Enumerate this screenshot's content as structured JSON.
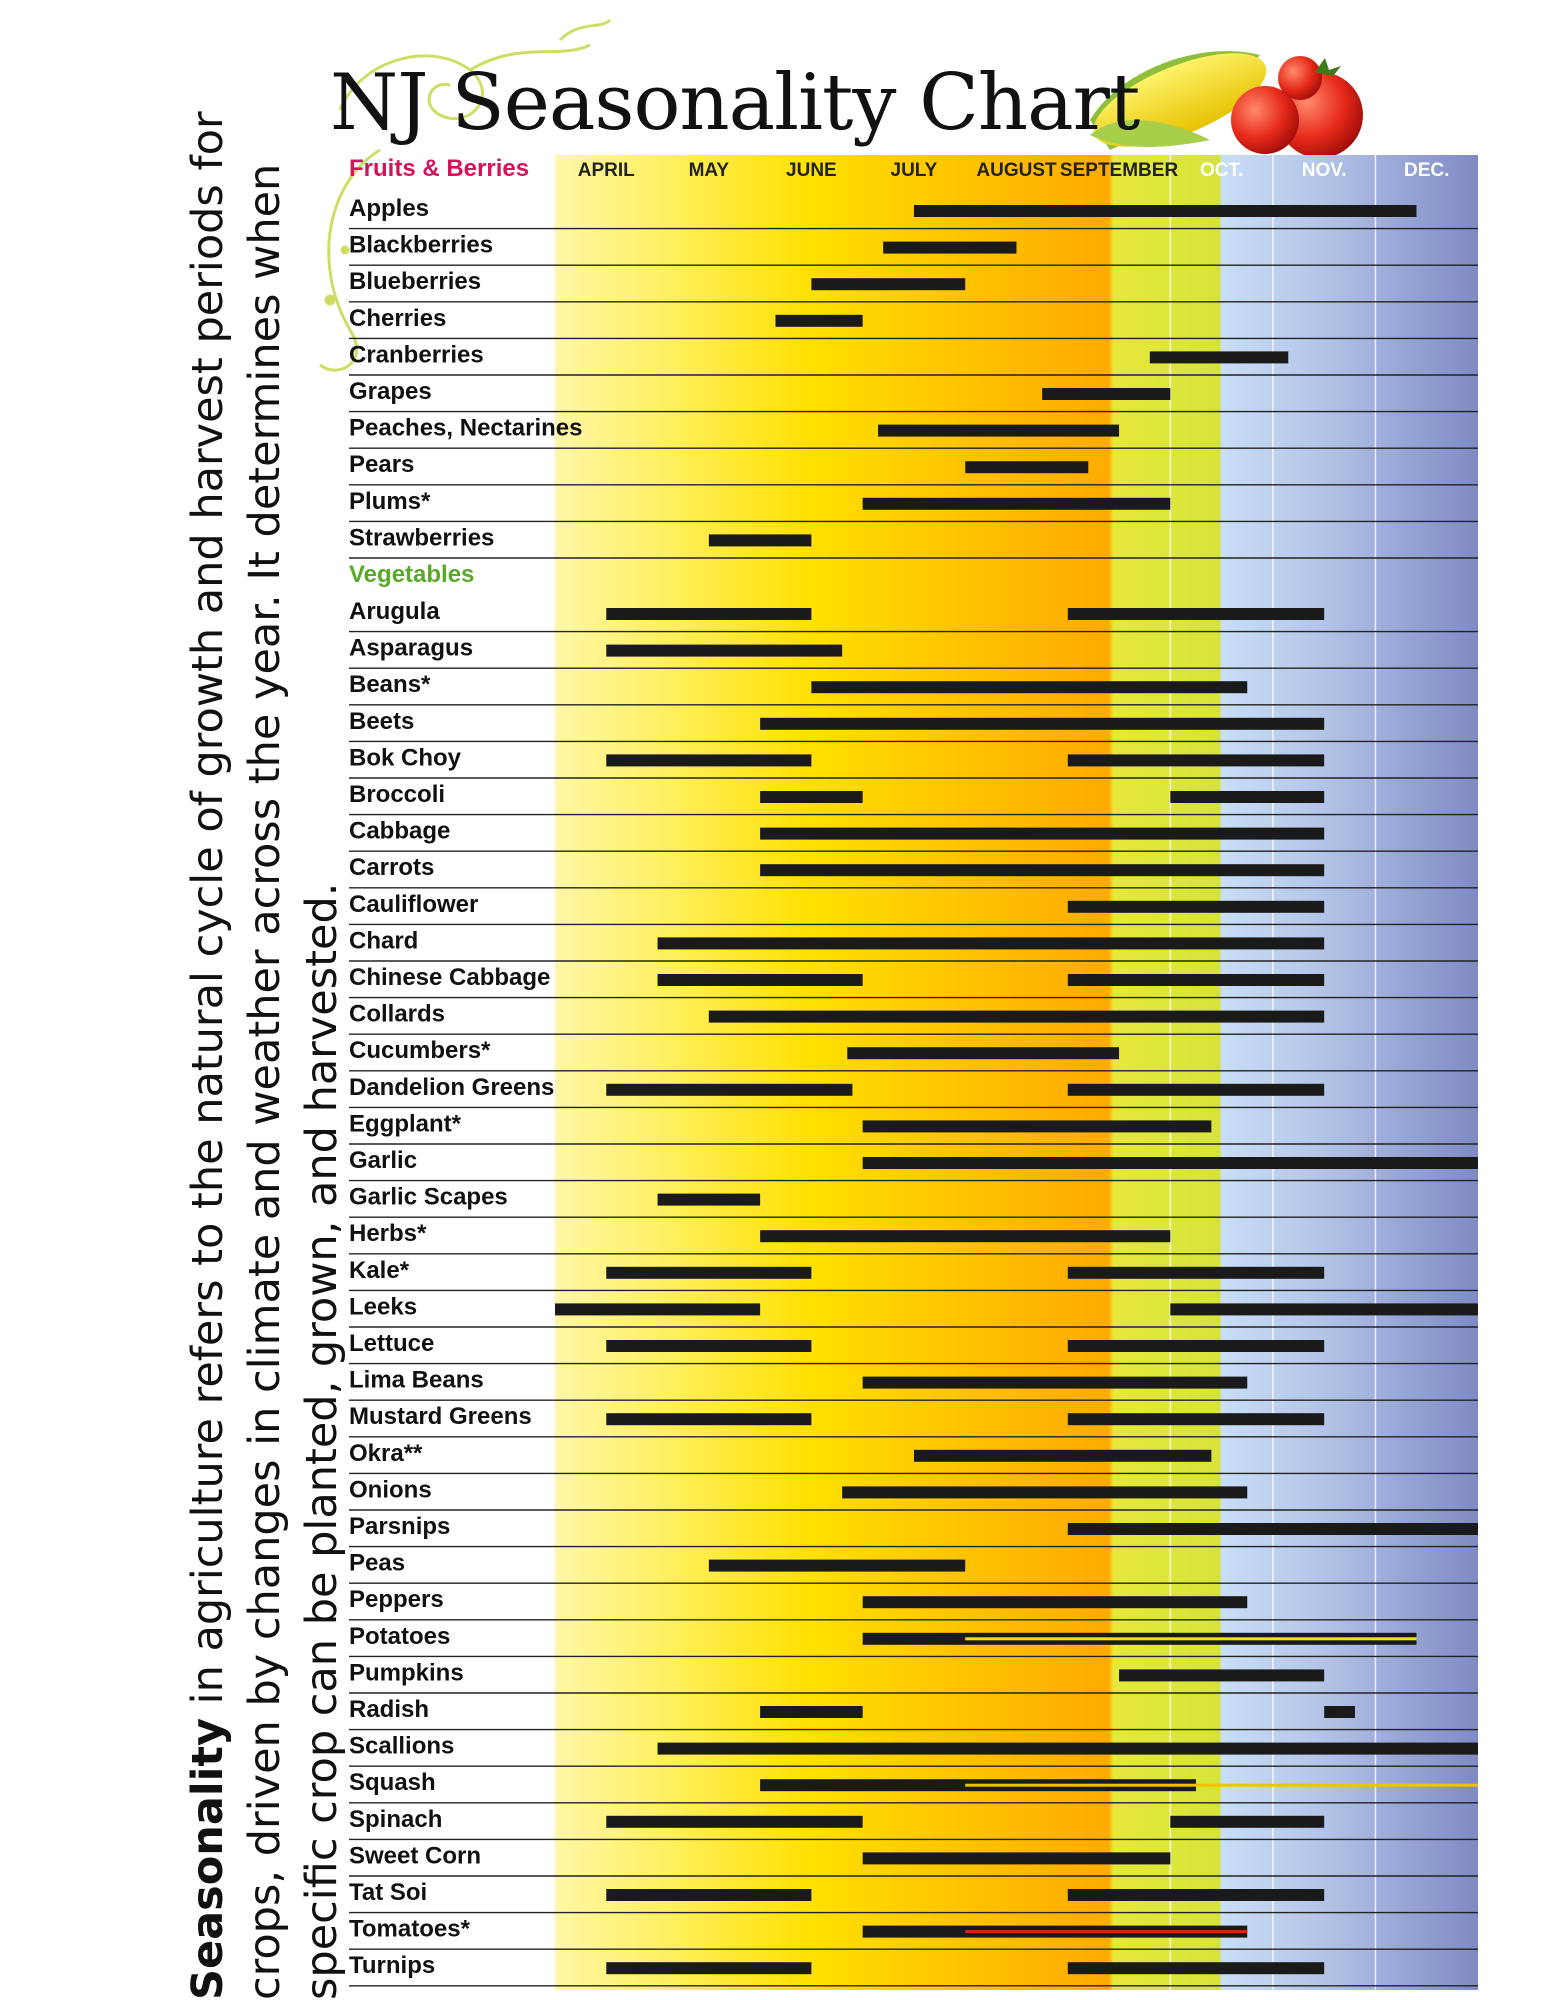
{
  "caption": {
    "bold": "Seasonality",
    "rest": " in agriculture refers to the natural cycle of growth and harvest periods for crops, driven by changes in climate and weather across the year. It determines when specific crop can be planted, grown, and harvested."
  },
  "colors": {
    "fruits_header": "#d4145a",
    "vegetables_header": "#5aaa2a",
    "bar": "#1a1a1a",
    "line": "#222222"
  },
  "icons": [
    "swirl-ornament-icon",
    "corn-icon",
    "tomato-icon"
  ],
  "chart_data": {
    "type": "timeline",
    "title": "NJ Seasonality Chart",
    "x_unit": "month",
    "x_range": [
      4,
      13
    ],
    "months": [
      "APRIL",
      "MAY",
      "JUNE",
      "JULY",
      "AUGUST",
      "SEPTEMBER",
      "OCT.",
      "NOV.",
      "DEC."
    ],
    "sections": [
      {
        "name": "Fruits & Berries",
        "items": [
          {
            "name": "Apples",
            "ranges": [
              [
                7.5,
                12.4
              ]
            ]
          },
          {
            "name": "Blackberries",
            "ranges": [
              [
                7.2,
                8.5
              ]
            ]
          },
          {
            "name": "Blueberries",
            "ranges": [
              [
                6.5,
                8.0
              ]
            ]
          },
          {
            "name": "Cherries",
            "ranges": [
              [
                6.15,
                7.0
              ]
            ]
          },
          {
            "name": "Cranberries",
            "ranges": [
              [
                9.8,
                11.15
              ]
            ]
          },
          {
            "name": "Grapes",
            "ranges": [
              [
                8.75,
                10.0
              ]
            ]
          },
          {
            "name": "Peaches, Nectarines",
            "ranges": [
              [
                7.15,
                9.5
              ]
            ]
          },
          {
            "name": "Pears",
            "ranges": [
              [
                8.0,
                9.2
              ]
            ]
          },
          {
            "name": "Plums*",
            "ranges": [
              [
                7.0,
                10.0
              ]
            ]
          },
          {
            "name": "Strawberries",
            "ranges": [
              [
                5.5,
                6.5
              ]
            ]
          }
        ]
      },
      {
        "name": "Vegetables",
        "items": [
          {
            "name": "Arugula",
            "ranges": [
              [
                4.5,
                6.5
              ],
              [
                9.0,
                11.5
              ]
            ]
          },
          {
            "name": "Asparagus",
            "ranges": [
              [
                4.5,
                6.8
              ]
            ]
          },
          {
            "name": "Beans*",
            "ranges": [
              [
                6.5,
                10.75
              ]
            ]
          },
          {
            "name": "Beets",
            "ranges": [
              [
                6.0,
                11.5
              ]
            ]
          },
          {
            "name": "Bok Choy",
            "ranges": [
              [
                4.5,
                6.5
              ],
              [
                9.0,
                11.5
              ]
            ]
          },
          {
            "name": "Broccoli",
            "ranges": [
              [
                6.0,
                7.0
              ],
              [
                10.0,
                11.5
              ]
            ]
          },
          {
            "name": "Cabbage",
            "ranges": [
              [
                6.0,
                11.5
              ]
            ]
          },
          {
            "name": "Carrots",
            "ranges": [
              [
                6.0,
                11.5
              ]
            ]
          },
          {
            "name": "Cauliflower",
            "ranges": [
              [
                9.0,
                11.5
              ]
            ]
          },
          {
            "name": "Chard",
            "ranges": [
              [
                5.0,
                11.5
              ]
            ]
          },
          {
            "name": "Chinese Cabbage",
            "ranges": [
              [
                5.0,
                7.0
              ],
              [
                9.0,
                11.5
              ]
            ]
          },
          {
            "name": "Collards",
            "ranges": [
              [
                5.5,
                11.5
              ]
            ]
          },
          {
            "name": "Cucumbers*",
            "ranges": [
              [
                6.85,
                9.5
              ]
            ]
          },
          {
            "name": "Dandelion Greens",
            "ranges": [
              [
                4.5,
                6.9
              ],
              [
                9.0,
                11.5
              ]
            ]
          },
          {
            "name": "Eggplant*",
            "ranges": [
              [
                7.0,
                10.4
              ]
            ]
          },
          {
            "name": "Garlic",
            "ranges": [
              [
                7.0,
                13.0
              ]
            ]
          },
          {
            "name": "Garlic Scapes",
            "ranges": [
              [
                5.0,
                6.0
              ]
            ]
          },
          {
            "name": "Herbs*",
            "ranges": [
              [
                6.0,
                10.0
              ]
            ]
          },
          {
            "name": "Kale*",
            "ranges": [
              [
                4.5,
                6.5
              ],
              [
                9.0,
                11.5
              ]
            ]
          },
          {
            "name": "Leeks",
            "ranges": [
              [
                4.0,
                6.0
              ],
              [
                10.0,
                13.0
              ]
            ]
          },
          {
            "name": "Lettuce",
            "ranges": [
              [
                4.5,
                6.5
              ],
              [
                9.0,
                11.5
              ]
            ]
          },
          {
            "name": "Lima Beans",
            "ranges": [
              [
                7.0,
                10.75
              ]
            ]
          },
          {
            "name": "Mustard Greens",
            "ranges": [
              [
                4.5,
                6.5
              ],
              [
                9.0,
                11.5
              ]
            ]
          },
          {
            "name": "Okra**",
            "ranges": [
              [
                7.5,
                10.4
              ]
            ]
          },
          {
            "name": "Onions",
            "ranges": [
              [
                6.8,
                10.75
              ]
            ]
          },
          {
            "name": "Parsnips",
            "ranges": [
              [
                9.0,
                13.0
              ]
            ]
          },
          {
            "name": "Peas",
            "ranges": [
              [
                5.5,
                8.0
              ]
            ]
          },
          {
            "name": "Peppers",
            "ranges": [
              [
                7.0,
                10.75
              ]
            ]
          },
          {
            "name": "Potatoes",
            "ranges": [
              [
                7.0,
                12.4
              ]
            ],
            "overlay": {
              "range": [
                8.0,
                12.4
              ],
              "color": "#f2e600"
            }
          },
          {
            "name": "Pumpkins",
            "ranges": [
              [
                9.5,
                11.5
              ]
            ]
          },
          {
            "name": "Radish",
            "ranges": [
              [
                6.0,
                7.0
              ],
              [
                11.5,
                11.8
              ]
            ]
          },
          {
            "name": "Scallions",
            "ranges": [
              [
                5.0,
                13.0
              ]
            ]
          },
          {
            "name": "Squash",
            "ranges": [
              [
                6.0,
                10.25
              ]
            ],
            "overlay": {
              "range": [
                8.0,
                13.0
              ],
              "color": "#f2c200"
            }
          },
          {
            "name": "Spinach",
            "ranges": [
              [
                4.5,
                7.0
              ],
              [
                10.0,
                11.5
              ]
            ]
          },
          {
            "name": "Sweet Corn",
            "ranges": [
              [
                7.0,
                10.0
              ]
            ]
          },
          {
            "name": "Tat Soi",
            "ranges": [
              [
                4.5,
                6.5
              ],
              [
                9.0,
                11.5
              ]
            ]
          },
          {
            "name": "Tomatoes*",
            "ranges": [
              [
                7.0,
                10.75
              ]
            ],
            "overlay": {
              "range": [
                8.0,
                10.75
              ],
              "color": "#e02020"
            }
          },
          {
            "name": "Turnips",
            "ranges": [
              [
                4.5,
                6.5
              ],
              [
                9.0,
                11.5
              ]
            ]
          }
        ]
      }
    ]
  }
}
